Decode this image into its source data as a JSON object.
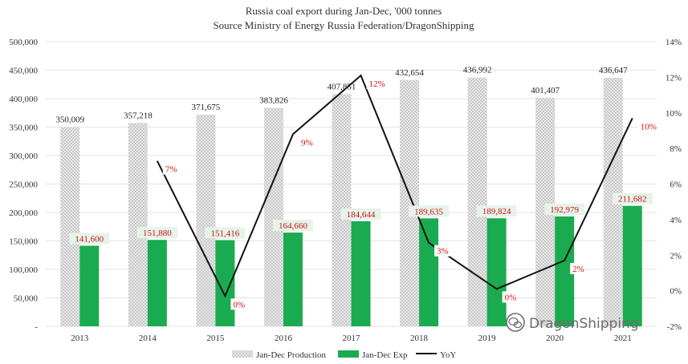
{
  "chart_data": {
    "type": "bar",
    "title": "Russia coal export during Jan-Dec, '000 tonnes",
    "subtitle": "Source Ministry of Energy Russia Federation/DragonShipping",
    "categories": [
      "2013",
      "2014",
      "2015",
      "2016",
      "2017",
      "2018",
      "2019",
      "2020",
      "2021"
    ],
    "series": [
      {
        "name": "Jan-Dec Production",
        "type": "bar",
        "color": "#bfbfbf",
        "values": [
          350009,
          357218,
          371675,
          383826,
          407851,
          432654,
          436992,
          401407,
          436647
        ],
        "labels": [
          "350,009",
          "357,218",
          "371,675",
          "383,826",
          "407,851",
          "432,654",
          "436,992",
          "401,407",
          "436,647"
        ]
      },
      {
        "name": "Jan-Dec Exp",
        "type": "bar",
        "color": "#1aab50",
        "values": [
          141600,
          151880,
          151416,
          164660,
          184644,
          189635,
          189824,
          192979,
          211682
        ],
        "labels": [
          "141,600",
          "151,880",
          "151,416",
          "164,660",
          "184,644",
          "189,635",
          "189,824",
          "192,979",
          "211,682"
        ]
      },
      {
        "name": "YoY",
        "type": "line",
        "axis": "right",
        "color": "#111111",
        "values": [
          null,
          7.3,
          -0.3,
          8.8,
          12.1,
          2.7,
          0.1,
          1.7,
          9.7
        ],
        "labels": [
          "",
          "7%",
          "0%",
          "9%",
          "12%",
          "3%",
          "0%",
          "2%",
          "10%"
        ]
      }
    ],
    "y_left": {
      "min": 0,
      "max": 500000,
      "step": 50000,
      "tick_labels": [
        "-",
        "50,000",
        "100,000",
        "150,000",
        "200,000",
        "250,000",
        "300,000",
        "350,000",
        "400,000",
        "450,000",
        "500,000"
      ]
    },
    "y_right": {
      "min": -2,
      "max": 14,
      "step": 2,
      "tick_labels": [
        "-2%",
        "0%",
        "2%",
        "4%",
        "6%",
        "8%",
        "10%",
        "12%",
        "14%"
      ]
    },
    "grid": true,
    "legend": "bottom"
  },
  "watermark": {
    "text": "DragonShipping",
    "icon": "wechat-icon"
  }
}
